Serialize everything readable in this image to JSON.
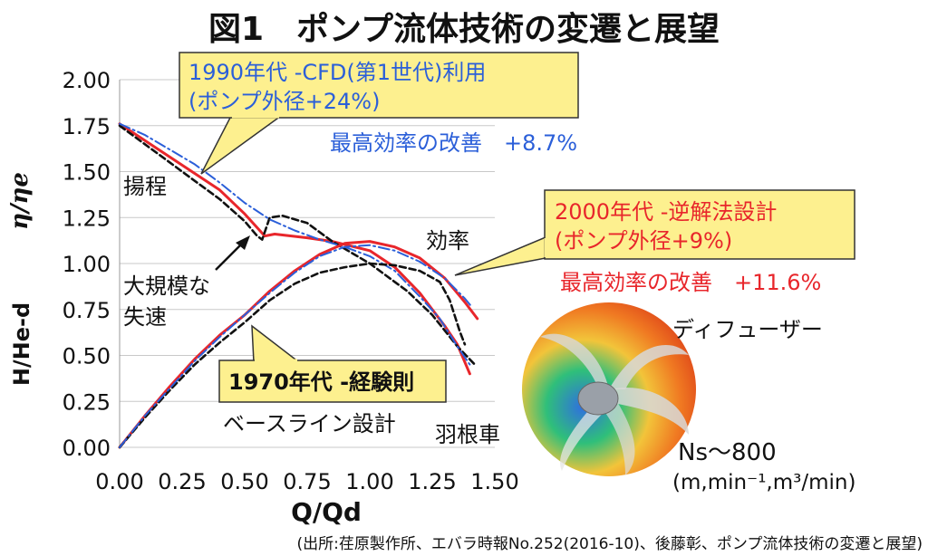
{
  "title": "図1　ポンプ流体技術の変遷と展望",
  "source": "(出所:荏原製作所、エバラ時報No.252(2016-10)、後藤彰、ポンプ流体技術の変遷と展望)",
  "colors": {
    "red": "#e8262b",
    "black": "#111111",
    "blue": "#2b5fd9",
    "callout": "#fdf08f",
    "grid": "#c8c8c8"
  },
  "callouts": {
    "cfd": {
      "line1": "1990年代 -CFD(第1世代)利用",
      "line2": "(ポンプ外径+24%)",
      "improvement": "最高効率の改善　+8.7%"
    },
    "inverse": {
      "line1": "2000年代 -逆解法設計",
      "line2": "(ポンプ外径+9%)",
      "improvement": "最高効率の改善　+11.6%"
    },
    "empirical": {
      "line1": "1970年代 -経験則"
    }
  },
  "labels": {
    "head": "揚程",
    "efficiency": "効率",
    "stall_1": "大規模な",
    "stall_2": "失速",
    "baseline": "ベースライン設計",
    "impeller": "羽根車",
    "diffuser": "ディフューザー",
    "ns": "Ns～800",
    "ns_units": "(m,min⁻¹,m³/min)"
  },
  "chart_data": {
    "type": "line",
    "xlabel": "Q/Qd",
    "ylabel_top": "η/ηe",
    "ylabel_bottom": "H/He-d",
    "xlim": [
      0,
      1.5
    ],
    "ylim": [
      0,
      2.0
    ],
    "xticks": [
      "0.00",
      "0.25",
      "0.50",
      "0.75",
      "1.00",
      "1.25",
      "1.50"
    ],
    "yticks": [
      "0.00",
      "0.25",
      "0.50",
      "0.75",
      "1.00",
      "1.25",
      "1.50",
      "1.75",
      "2.00"
    ],
    "grid": "horizontal",
    "series": [
      {
        "style": "red-solid",
        "curve": "head",
        "points": [
          [
            0,
            1.76
          ],
          [
            0.1,
            1.67
          ],
          [
            0.2,
            1.58
          ],
          [
            0.3,
            1.49
          ],
          [
            0.4,
            1.4
          ],
          [
            0.5,
            1.27
          ],
          [
            0.58,
            1.15
          ],
          [
            0.62,
            1.16
          ],
          [
            0.75,
            1.14
          ],
          [
            0.85,
            1.12
          ],
          [
            1.0,
            1.07
          ],
          [
            1.1,
            0.98
          ],
          [
            1.2,
            0.84
          ],
          [
            1.3,
            0.66
          ],
          [
            1.35,
            0.56
          ],
          [
            1.4,
            0.4
          ]
        ]
      },
      {
        "style": "black-dash",
        "curve": "head",
        "points": [
          [
            0,
            1.75
          ],
          [
            0.1,
            1.65
          ],
          [
            0.2,
            1.55
          ],
          [
            0.3,
            1.45
          ],
          [
            0.4,
            1.35
          ],
          [
            0.5,
            1.23
          ],
          [
            0.55,
            1.15
          ],
          [
            0.57,
            1.13
          ],
          [
            0.6,
            1.25
          ],
          [
            0.65,
            1.26
          ],
          [
            0.75,
            1.22
          ],
          [
            0.85,
            1.12
          ],
          [
            1.0,
            1.0
          ],
          [
            1.15,
            0.85
          ],
          [
            1.25,
            0.72
          ],
          [
            1.35,
            0.55
          ],
          [
            1.42,
            0.45
          ]
        ]
      },
      {
        "style": "blue-dashdot",
        "curve": "head",
        "points": [
          [
            0,
            1.76
          ],
          [
            0.1,
            1.7
          ],
          [
            0.2,
            1.62
          ],
          [
            0.3,
            1.54
          ],
          [
            0.4,
            1.44
          ],
          [
            0.5,
            1.33
          ],
          [
            0.6,
            1.24
          ],
          [
            0.7,
            1.18
          ],
          [
            0.8,
            1.13
          ],
          [
            0.9,
            1.09
          ],
          [
            1.0,
            1.04
          ],
          [
            1.1,
            0.96
          ],
          [
            1.2,
            0.82
          ],
          [
            1.28,
            0.7
          ],
          [
            1.35,
            0.55
          ],
          [
            1.4,
            0.45
          ]
        ]
      },
      {
        "style": "red-solid",
        "curve": "efficiency",
        "points": [
          [
            0,
            0
          ],
          [
            0.1,
            0.17
          ],
          [
            0.2,
            0.33
          ],
          [
            0.3,
            0.48
          ],
          [
            0.4,
            0.61
          ],
          [
            0.5,
            0.72
          ],
          [
            0.6,
            0.85
          ],
          [
            0.7,
            0.96
          ],
          [
            0.8,
            1.05
          ],
          [
            0.9,
            1.11
          ],
          [
            1.0,
            1.12
          ],
          [
            1.1,
            1.09
          ],
          [
            1.2,
            1.03
          ],
          [
            1.3,
            0.92
          ],
          [
            1.38,
            0.79
          ],
          [
            1.43,
            0.7
          ]
        ]
      },
      {
        "style": "black-dash",
        "curve": "efficiency",
        "points": [
          [
            0,
            0
          ],
          [
            0.1,
            0.16
          ],
          [
            0.2,
            0.31
          ],
          [
            0.3,
            0.45
          ],
          [
            0.4,
            0.57
          ],
          [
            0.5,
            0.68
          ],
          [
            0.6,
            0.8
          ],
          [
            0.7,
            0.89
          ],
          [
            0.8,
            0.95
          ],
          [
            0.9,
            0.98
          ],
          [
            1.0,
            1.0
          ],
          [
            1.1,
            0.99
          ],
          [
            1.2,
            0.96
          ],
          [
            1.28,
            0.9
          ],
          [
            1.32,
            0.8
          ],
          [
            1.36,
            0.63
          ],
          [
            1.38,
            0.56
          ]
        ]
      },
      {
        "style": "blue-dashdot",
        "curve": "efficiency",
        "points": [
          [
            0,
            0
          ],
          [
            0.1,
            0.17
          ],
          [
            0.2,
            0.32
          ],
          [
            0.3,
            0.47
          ],
          [
            0.4,
            0.6
          ],
          [
            0.5,
            0.72
          ],
          [
            0.6,
            0.84
          ],
          [
            0.7,
            0.95
          ],
          [
            0.8,
            1.04
          ],
          [
            0.9,
            1.09
          ],
          [
            1.0,
            1.1
          ],
          [
            1.1,
            1.07
          ],
          [
            1.2,
            1.01
          ],
          [
            1.3,
            0.92
          ],
          [
            1.38,
            0.81
          ],
          [
            1.41,
            0.76
          ]
        ]
      }
    ]
  }
}
